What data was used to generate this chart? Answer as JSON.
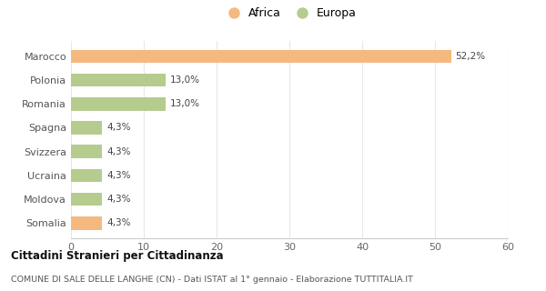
{
  "categories": [
    "Marocco",
    "Polonia",
    "Romania",
    "Spagna",
    "Svizzera",
    "Ucraina",
    "Moldova",
    "Somalia"
  ],
  "values": [
    52.2,
    13.0,
    13.0,
    4.3,
    4.3,
    4.3,
    4.3,
    4.3
  ],
  "labels": [
    "52,2%",
    "13,0%",
    "13,0%",
    "4,3%",
    "4,3%",
    "4,3%",
    "4,3%",
    "4,3%"
  ],
  "colors": [
    "#f5b97f",
    "#b5cc8e",
    "#b5cc8e",
    "#b5cc8e",
    "#b5cc8e",
    "#b5cc8e",
    "#b5cc8e",
    "#f5b97f"
  ],
  "legend_items": [
    {
      "label": "Africa",
      "color": "#f5b97f"
    },
    {
      "label": "Europa",
      "color": "#b5cc8e"
    }
  ],
  "xlim": [
    0,
    60
  ],
  "xticks": [
    0,
    10,
    20,
    30,
    40,
    50,
    60
  ],
  "title": "Cittadini Stranieri per Cittadinanza",
  "subtitle": "COMUNE DI SALE DELLE LANGHE (CN) - Dati ISTAT al 1° gennaio - Elaborazione TUTTITALIA.IT",
  "background_color": "#ffffff",
  "bar_height": 0.55
}
